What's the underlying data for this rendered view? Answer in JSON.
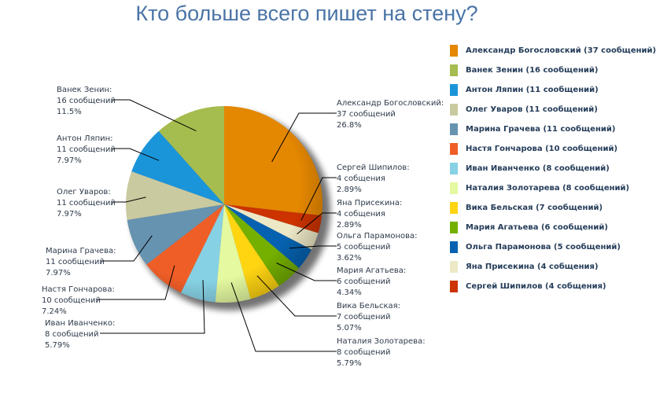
{
  "chart_data": {
    "type": "pie",
    "title": "Кто больше всего пишет на стену?",
    "legend_position": "right",
    "slices": [
      {
        "name": "Александр Богословский",
        "value": 37,
        "label": "37 сообщений",
        "percent": "26.8%",
        "legend": "Александр Богословский (37 сообщений)",
        "color": "#e48701"
      },
      {
        "name": "Сергей Шипилов",
        "value": 4,
        "label": "4 собщения",
        "percent": "2.89%",
        "legend": "Сергей Шипилов (4 собщения)",
        "color": "#cc3300"
      },
      {
        "name": "Яна Присекина",
        "value": 4,
        "label": "4 собщения",
        "percent": "2.89%",
        "legend": "Яна Присекина (4 собщения)",
        "color": "#ede8c6"
      },
      {
        "name": "Ольга Парамонова",
        "value": 5,
        "label": "5 сообщений",
        "percent": "3.62%",
        "legend": "Ольга Парамонова (5 сообщений)",
        "color": "#0662b0"
      },
      {
        "name": "Мария Агатьева",
        "value": 6,
        "label": "6 сообщений",
        "percent": "4.34%",
        "legend": "Мария Агатьева (6 сообщений)",
        "color": "#75b000"
      },
      {
        "name": "Вика Бельская",
        "value": 7,
        "label": "7 сообщений",
        "percent": "5.07%",
        "legend": "Вика Бельская (7 сообщений)",
        "color": "#ffd512"
      },
      {
        "name": "Наталия Золотарева",
        "value": 8,
        "label": "8 сообщений",
        "percent": "5.79%",
        "legend": "Наталия Золотарева (8 сообщений)",
        "color": "#e4f9a0"
      },
      {
        "name": "Иван Иванченко",
        "value": 8,
        "label": "8 сообщений",
        "percent": "5.79%",
        "legend": "Иван Иванченко (8 сообщений)",
        "color": "#86d1e4"
      },
      {
        "name": "Настя Гончарова",
        "value": 10,
        "label": "10 сообщений",
        "percent": "7.24%",
        "legend": "Настя Гончарова (10 сообщений)",
        "color": "#f05e27"
      },
      {
        "name": "Марина Грачева",
        "value": 11,
        "label": "11 сообщений",
        "percent": "7.97%",
        "legend": "Марина Грачева (11 сообщений)",
        "color": "#6693b0"
      },
      {
        "name": "Олег Уваров",
        "value": 11,
        "label": "11 сообщений",
        "percent": "7.97%",
        "legend": "Олег Уваров (11 сообщений)",
        "color": "#cacaa0"
      },
      {
        "name": "Антон Ляпин",
        "value": 11,
        "label": "11 сообщений",
        "percent": "7.97%",
        "legend": "Антон Ляпин (11 сообщений)",
        "color": "#1b95d9"
      },
      {
        "name": "Ванек Зенин",
        "value": 16,
        "label": "16 сообщений",
        "percent": "11.5%",
        "legend": "Ванек Зенин (16 сообщений)",
        "color": "#a5bc4e"
      }
    ],
    "legend_order": [
      0,
      12,
      11,
      10,
      9,
      8,
      7,
      6,
      5,
      4,
      3,
      2,
      1
    ]
  }
}
